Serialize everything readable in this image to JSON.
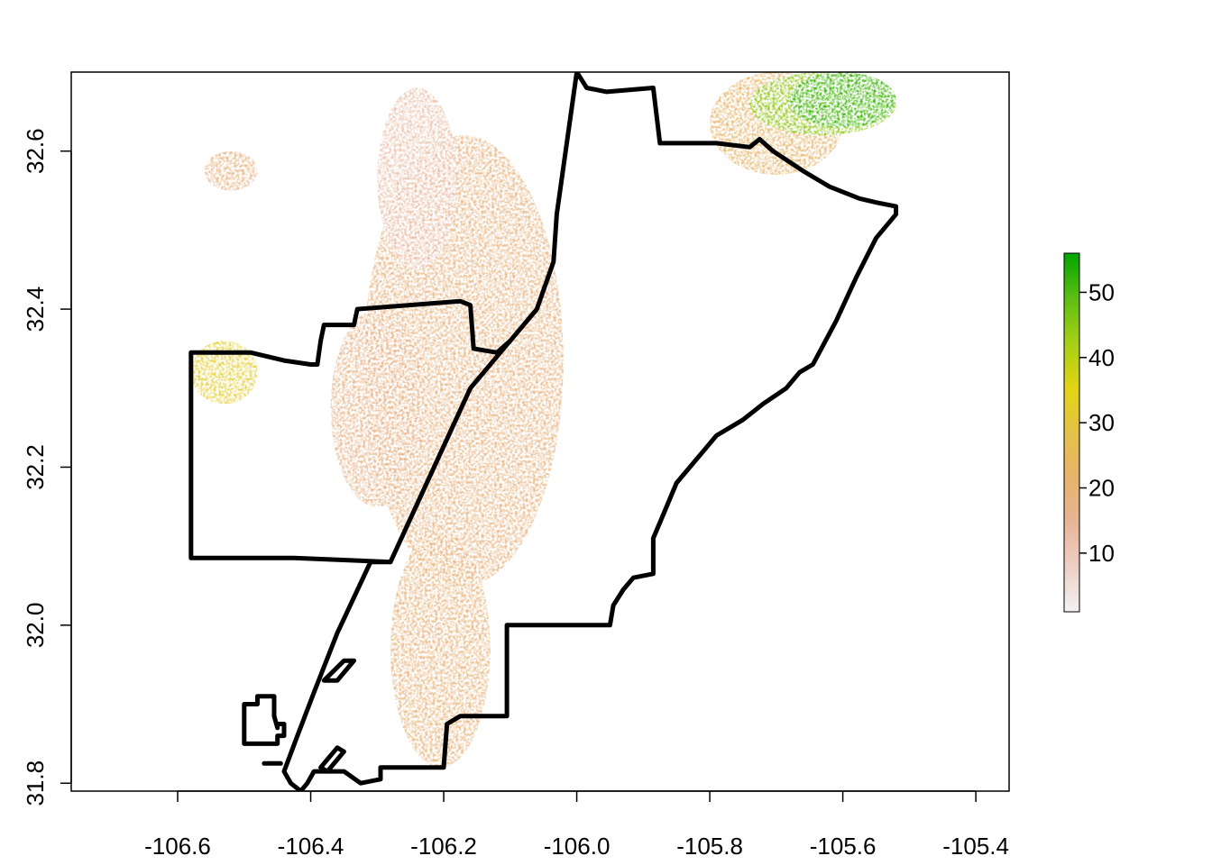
{
  "chart_data": {
    "type": "heatmap",
    "title": "",
    "xlabel": "",
    "ylabel": "",
    "xlim": [
      -106.76,
      -105.35
    ],
    "ylim": [
      31.79,
      32.7
    ],
    "x_ticks": [
      -106.6,
      -106.4,
      -106.2,
      -106.0,
      -105.8,
      -105.6,
      -105.4
    ],
    "x_tick_labels": [
      "-106.6",
      "-106.4",
      "-106.2",
      "-106.0",
      "-105.8",
      "-105.6",
      "-105.4"
    ],
    "y_ticks": [
      31.8,
      32.0,
      32.2,
      32.4,
      32.6
    ],
    "y_tick_labels": [
      "31.8",
      "32.0",
      "32.2",
      "32.4",
      "32.6"
    ],
    "legend": {
      "placement": "right",
      "range": [
        1,
        56
      ],
      "ticks": [
        10,
        20,
        30,
        40,
        50
      ],
      "tick_labels": [
        "10",
        "20",
        "30",
        "40",
        "50"
      ],
      "colors": [
        "#f2f2f2",
        "#eecfc6",
        "#e8b596",
        "#e6b36a",
        "#e5c247",
        "#e2d511",
        "#a6d014",
        "#5cbe12",
        "#00a600"
      ]
    },
    "raster_extent": {
      "lon": [
        -106.58,
        -105.52
      ],
      "lat": [
        31.79,
        32.7
      ]
    },
    "raster_zones": [
      {
        "lon": [
          -106.32,
          -106.02
        ],
        "lat": [
          32.05,
          32.62
        ],
        "value": 18
      },
      {
        "lon": [
          -106.28,
          -106.13
        ],
        "lat": [
          31.82,
          32.12
        ],
        "value": 19
      },
      {
        "lon": [
          -106.37,
          -106.23
        ],
        "lat": [
          32.15,
          32.4
        ],
        "value": 17
      },
      {
        "lon": [
          -106.3,
          -106.18
        ],
        "lat": [
          32.45,
          32.68
        ],
        "value": 12
      },
      {
        "lon": [
          -106.58,
          -106.48
        ],
        "lat": [
          32.28,
          32.36
        ],
        "value": 32
      },
      {
        "lon": [
          -106.56,
          -106.48
        ],
        "lat": [
          32.55,
          32.6
        ],
        "value": 18
      },
      {
        "lon": [
          -105.8,
          -105.6
        ],
        "lat": [
          32.57,
          32.7
        ],
        "value": 22
      },
      {
        "lon": [
          -105.74,
          -105.52
        ],
        "lat": [
          32.62,
          32.7
        ],
        "value": 45
      },
      {
        "lon": [
          -105.68,
          -105.52
        ],
        "lat": [
          32.63,
          32.7
        ],
        "value": 52
      }
    ],
    "boundaries": [
      {
        "type": "outline",
        "points": [
          [
            -106.58,
            32.345
          ],
          [
            -106.49,
            32.345
          ],
          [
            -106.44,
            32.335
          ],
          [
            -106.4,
            32.33
          ],
          [
            -106.39,
            32.33
          ],
          [
            -106.385,
            32.36
          ],
          [
            -106.38,
            32.38
          ],
          [
            -106.335,
            32.38
          ],
          [
            -106.33,
            32.4
          ],
          [
            -106.175,
            32.41
          ],
          [
            -106.16,
            32.405
          ],
          [
            -106.155,
            32.35
          ],
          [
            -106.12,
            32.345
          ],
          [
            -106.1,
            32.36
          ],
          [
            -106.06,
            32.4
          ],
          [
            -106.035,
            32.46
          ],
          [
            -106.03,
            32.52
          ],
          [
            -106.015,
            32.61
          ],
          [
            -106.0,
            32.7
          ],
          [
            -105.985,
            32.68
          ],
          [
            -105.955,
            32.675
          ],
          [
            -105.885,
            32.68
          ],
          [
            -105.875,
            32.61
          ],
          [
            -105.79,
            32.61
          ],
          [
            -105.74,
            32.605
          ],
          [
            -105.725,
            32.615
          ],
          [
            -105.705,
            32.6
          ],
          [
            -105.66,
            32.575
          ],
          [
            -105.62,
            32.555
          ],
          [
            -105.575,
            32.54
          ],
          [
            -105.55,
            32.535
          ],
          [
            -105.52,
            32.53
          ],
          [
            -105.52,
            32.52
          ],
          [
            -105.55,
            32.49
          ],
          [
            -105.58,
            32.44
          ],
          [
            -105.61,
            32.385
          ],
          [
            -105.645,
            32.33
          ],
          [
            -105.665,
            32.32
          ],
          [
            -105.685,
            32.3
          ],
          [
            -105.72,
            32.28
          ],
          [
            -105.75,
            32.26
          ],
          [
            -105.79,
            32.24
          ],
          [
            -105.82,
            32.21
          ],
          [
            -105.85,
            32.18
          ],
          [
            -105.87,
            32.14
          ],
          [
            -105.885,
            32.11
          ],
          [
            -105.885,
            32.065
          ],
          [
            -105.915,
            32.06
          ],
          [
            -105.93,
            32.045
          ],
          [
            -105.945,
            32.025
          ],
          [
            -105.95,
            32.0
          ],
          [
            -106.03,
            32.0
          ],
          [
            -106.105,
            32.0
          ],
          [
            -106.105,
            31.885
          ],
          [
            -106.175,
            31.885
          ],
          [
            -106.195,
            31.875
          ],
          [
            -106.2,
            31.82
          ],
          [
            -106.295,
            31.82
          ],
          [
            -106.295,
            31.805
          ],
          [
            -106.325,
            31.8
          ],
          [
            -106.35,
            31.815
          ],
          [
            -106.395,
            31.815
          ],
          [
            -106.405,
            31.8
          ],
          [
            -106.415,
            31.79
          ],
          [
            -106.43,
            31.8
          ],
          [
            -106.44,
            31.815
          ],
          [
            -106.42,
            31.86
          ],
          [
            -106.395,
            31.915
          ],
          [
            -106.36,
            31.99
          ],
          [
            -106.31,
            32.08
          ],
          [
            -106.28,
            32.08
          ],
          [
            -106.425,
            32.085
          ],
          [
            -106.58,
            32.085
          ],
          [
            -106.58,
            32.345
          ]
        ]
      },
      {
        "type": "line",
        "points": [
          [
            -106.28,
            32.08
          ],
          [
            -106.16,
            32.3
          ],
          [
            -106.1,
            32.36
          ]
        ]
      },
      {
        "type": "ring",
        "points": [
          [
            -106.5,
            31.875
          ],
          [
            -106.5,
            31.9
          ],
          [
            -106.48,
            31.9
          ],
          [
            -106.48,
            31.91
          ],
          [
            -106.455,
            31.91
          ],
          [
            -106.455,
            31.885
          ],
          [
            -106.45,
            31.87
          ],
          [
            -106.45,
            31.875
          ],
          [
            -106.44,
            31.875
          ],
          [
            -106.44,
            31.86
          ],
          [
            -106.45,
            31.86
          ],
          [
            -106.45,
            31.85
          ],
          [
            -106.5,
            31.85
          ],
          [
            -106.5,
            31.875
          ]
        ]
      },
      {
        "type": "ring",
        "points": [
          [
            -106.38,
            31.93
          ],
          [
            -106.35,
            31.955
          ],
          [
            -106.335,
            31.955
          ],
          [
            -106.36,
            31.93
          ],
          [
            -106.38,
            31.93
          ]
        ]
      },
      {
        "type": "ring",
        "points": [
          [
            -106.385,
            31.82
          ],
          [
            -106.36,
            31.845
          ],
          [
            -106.35,
            31.84
          ],
          [
            -106.375,
            31.815
          ],
          [
            -106.385,
            31.82
          ]
        ]
      },
      {
        "type": "line",
        "points": [
          [
            -106.47,
            31.825
          ],
          [
            -106.445,
            31.825
          ]
        ]
      }
    ],
    "grid": false
  }
}
